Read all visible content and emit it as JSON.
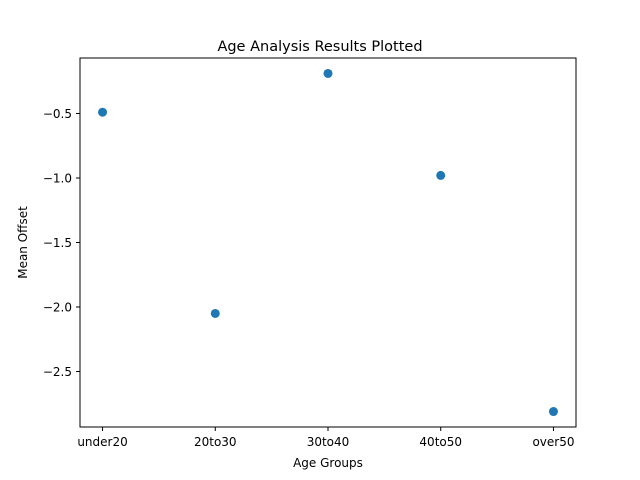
{
  "chart_data": {
    "type": "scatter",
    "title": "Age Analysis Results Plotted",
    "xlabel": "Age Groups",
    "ylabel": "Mean Offset",
    "categories": [
      "under20",
      "20to30",
      "30to40",
      "40to50",
      "over50"
    ],
    "values": [
      -0.49,
      -2.05,
      -0.19,
      -0.98,
      -2.81
    ],
    "ylim": [
      -2.93,
      -0.07
    ],
    "yticks": [
      -0.5,
      -1.0,
      -1.5,
      -2.0,
      -2.5
    ],
    "ytick_labels": [
      "−0.5",
      "−1.0",
      "−1.5",
      "−2.0",
      "−2.5"
    ],
    "grid": false,
    "marker_color": "#1f77b4"
  }
}
